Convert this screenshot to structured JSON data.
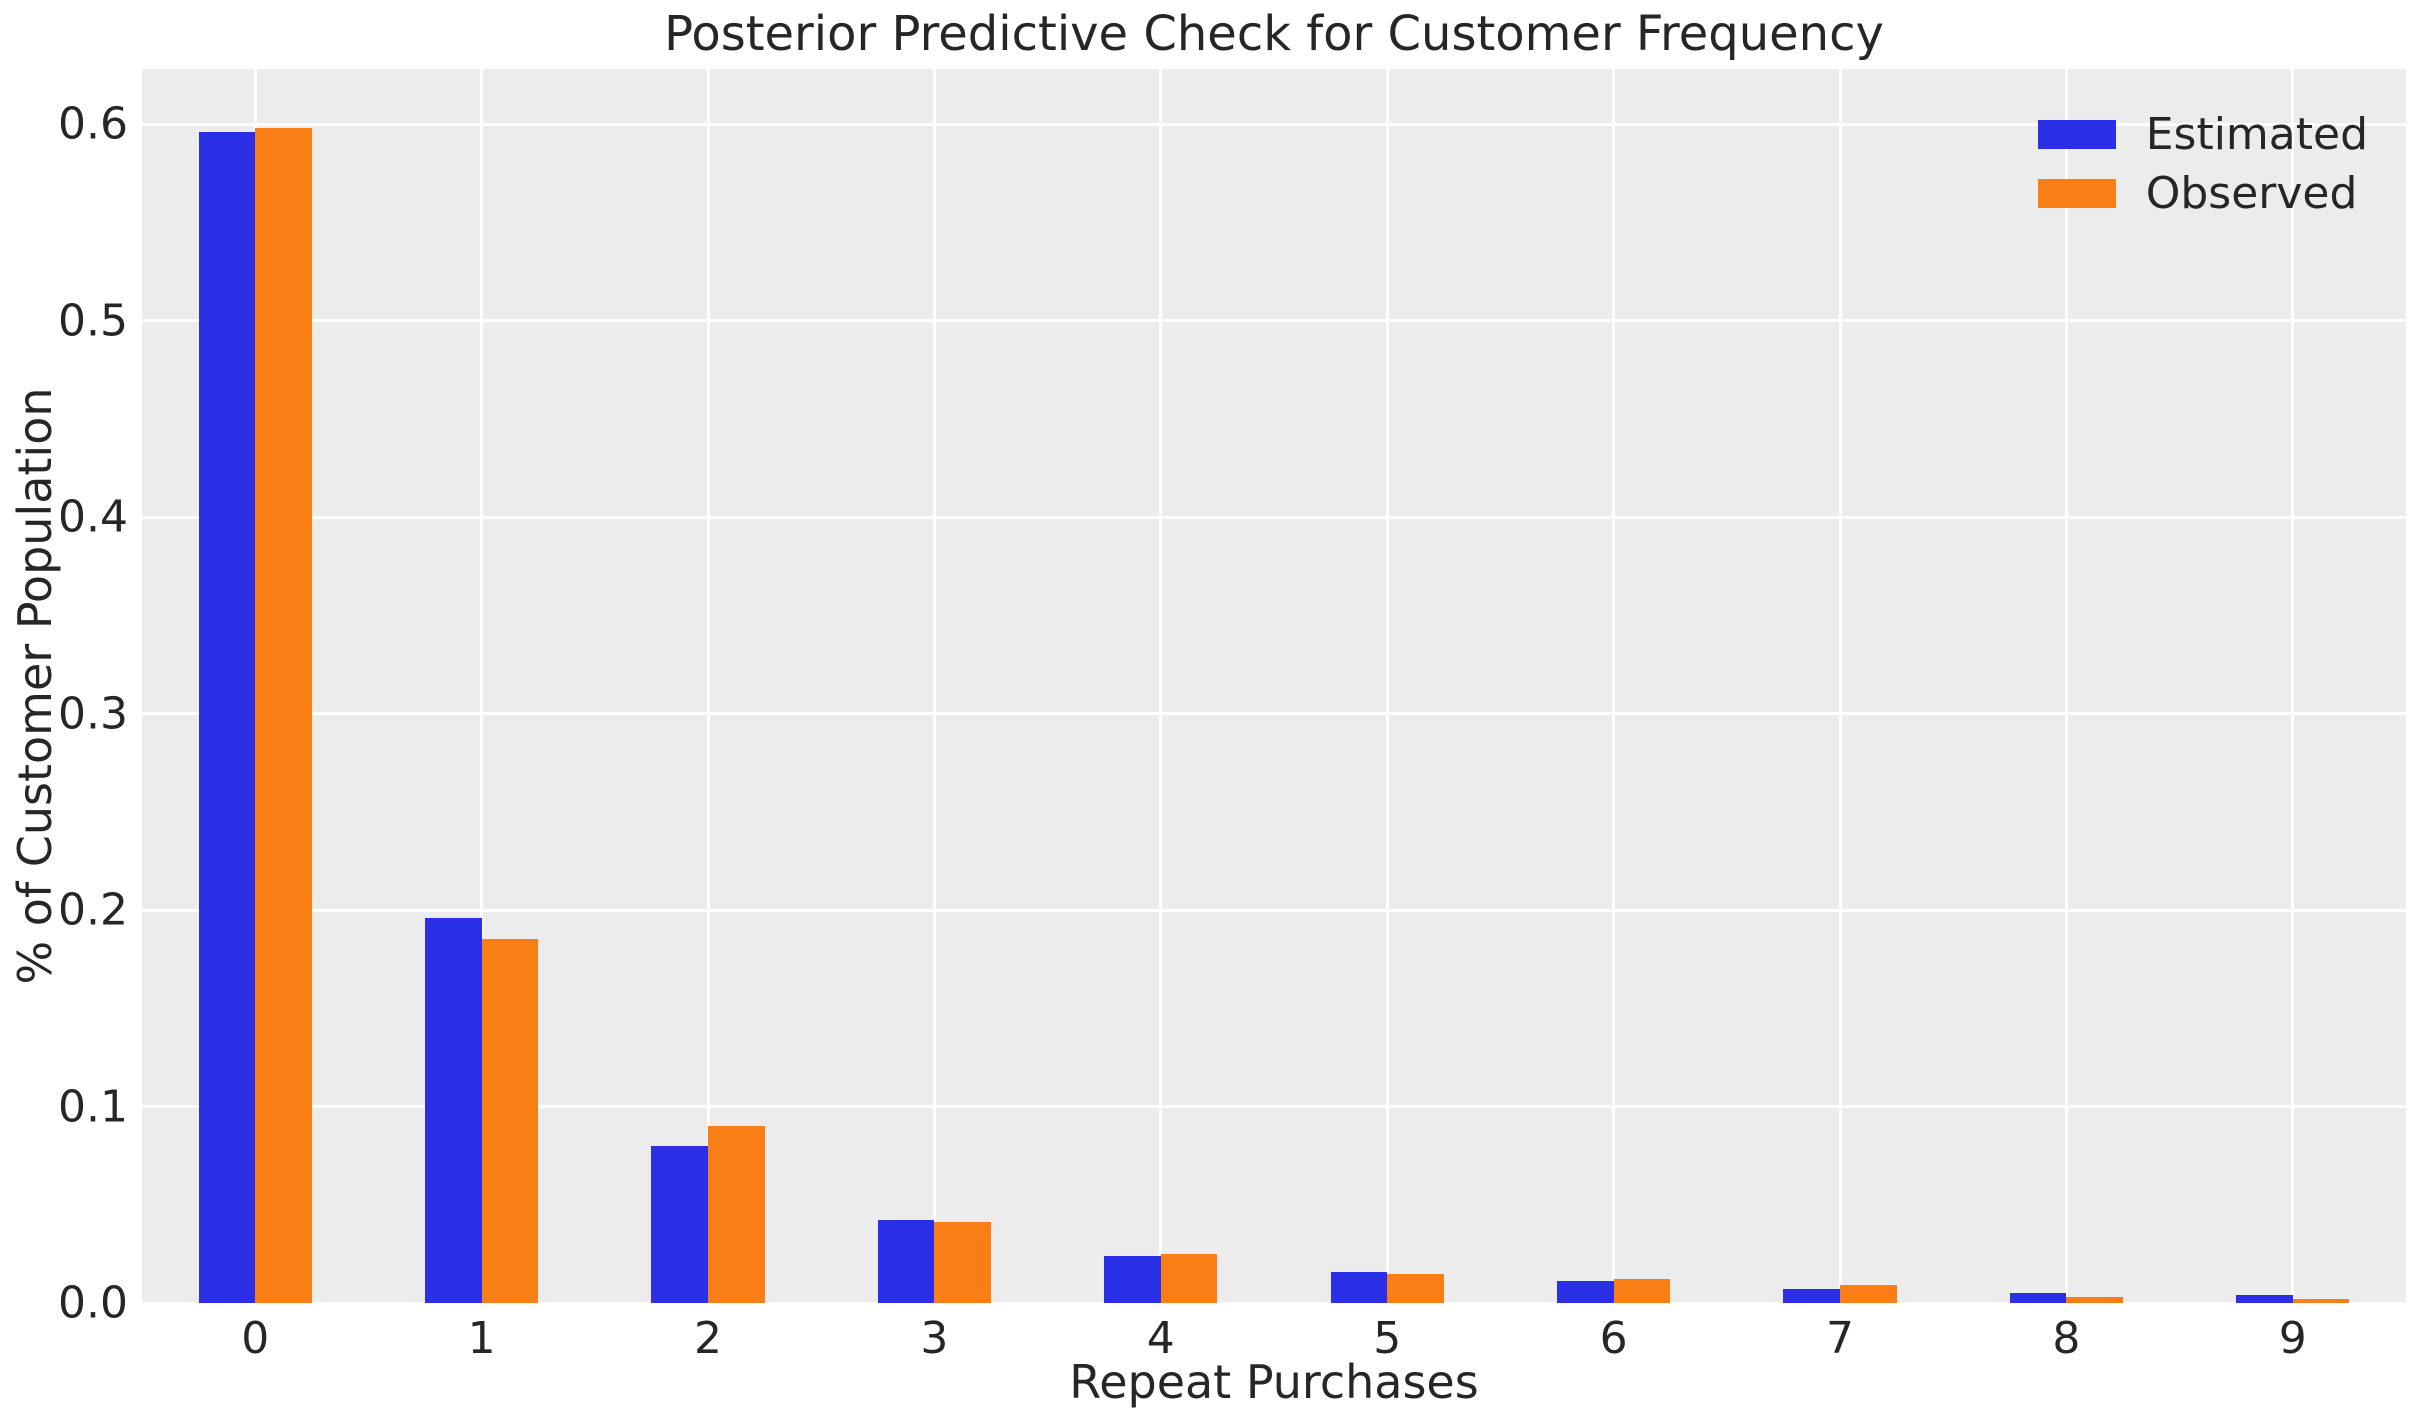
{
  "chart_data": {
    "type": "bar",
    "title": "Posterior Predictive Check for Customer Frequency",
    "xlabel": "Repeat Purchases",
    "ylabel": "% of Customer Population",
    "categories": [
      "0",
      "1",
      "2",
      "3",
      "4",
      "5",
      "6",
      "7",
      "8",
      "9"
    ],
    "series": [
      {
        "name": "Estimated",
        "color": "#2b2fe6",
        "values": [
          0.596,
          0.196,
          0.08,
          0.042,
          0.024,
          0.016,
          0.011,
          0.007,
          0.005,
          0.004
        ]
      },
      {
        "name": "Observed",
        "color": "#f97e16",
        "values": [
          0.598,
          0.185,
          0.09,
          0.041,
          0.025,
          0.015,
          0.012,
          0.009,
          0.003,
          0.002
        ]
      }
    ],
    "ylim": [
      0,
      0.628
    ],
    "yticks": [
      0.0,
      0.1,
      0.2,
      0.3,
      0.4,
      0.5,
      0.6
    ],
    "ytick_labels": [
      "0.0",
      "0.1",
      "0.2",
      "0.3",
      "0.4",
      "0.5",
      "0.6"
    ],
    "grid": true,
    "legend_position": "upper right",
    "colors": {
      "plot_background": "#ececec",
      "figure_background": "#ffffff",
      "gridline": "#ffffff",
      "text": "#262626"
    },
    "bar_width_fraction": 0.25
  }
}
